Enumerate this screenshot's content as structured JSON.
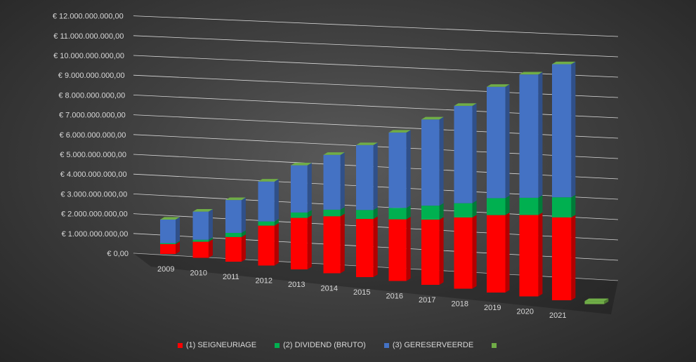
{
  "chart_data": {
    "type": "bar",
    "stacked": true,
    "three_d": true,
    "title": "",
    "xlabel": "",
    "ylabel": "",
    "ylim": [
      0,
      12000000000
    ],
    "y_ticks": [
      "€ 0,00",
      "€ 1.000.000.000,00",
      "€ 2.000.000.000,00",
      "€ 3.000.000.000,00",
      "€ 4.000.000.000,00",
      "€ 5.000.000.000,00",
      "€ 6.000.000.000,00",
      "€ 7.000.000.000,00",
      "€ 8.000.000.000,00",
      "€ 9.000.000.000,00",
      "€ 10.000.000.000,00",
      "€ 11.000.000.000,00",
      "€ 12.000.000.000,00"
    ],
    "categories": [
      "2009",
      "2010",
      "2011",
      "2012",
      "2013",
      "2014",
      "2015",
      "2016",
      "2017",
      "2018",
      "2019",
      "2020",
      "2021",
      ""
    ],
    "grid": true,
    "legend": "bottom",
    "series": [
      {
        "name": "(1) SEIGNEURIAGE",
        "color": "#ff0000",
        "values": [
          0.5,
          0.8,
          1.2,
          1.9,
          2.4,
          2.6,
          2.6,
          2.7,
          2.8,
          3.0,
          3.2,
          3.3,
          3.3,
          0
        ]
      },
      {
        "name": "(2) DIVIDEND (BRUTO)",
        "color": "#00b050",
        "values": [
          0.05,
          0.1,
          0.2,
          0.2,
          0.25,
          0.3,
          0.4,
          0.5,
          0.6,
          0.6,
          0.7,
          0.7,
          0.8,
          0
        ]
      },
      {
        "name": "(3) GERESERVEERDE",
        "color": "#4472c4",
        "values": [
          1.2,
          1.4,
          1.6,
          1.9,
          2.2,
          2.5,
          2.9,
          3.3,
          3.7,
          4.1,
          4.6,
          5.0,
          5.3,
          0
        ]
      },
      {
        "name": "",
        "color": "#70ad47",
        "values": [
          0,
          0,
          0,
          0,
          0,
          0,
          0,
          0,
          0,
          0,
          0,
          0,
          0,
          0
        ]
      }
    ],
    "value_unit": "billion EUR"
  }
}
